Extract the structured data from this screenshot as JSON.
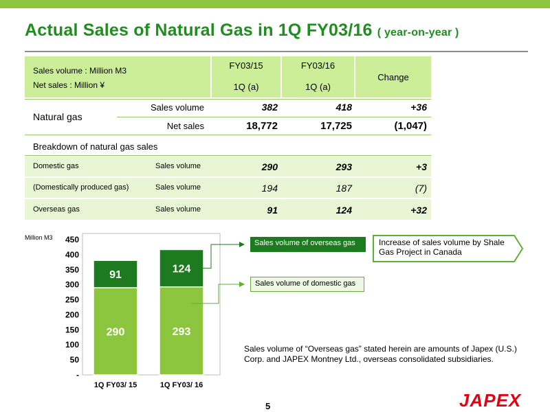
{
  "title": {
    "main": "Actual Sales of  Natural Gas  in 1Q FY03/16",
    "sub": "( year-on-year )"
  },
  "table": {
    "header": {
      "units_line1": "Sales volume : Million M3",
      "units_line2": "Net sales : Million ¥",
      "col1_line1": "FY03/15",
      "col1_line2": "1Q (a)",
      "col2_line1": "FY03/16",
      "col2_line2": "1Q (a)",
      "col3": "Change"
    },
    "natural_gas": {
      "label": "Natural gas",
      "rows": [
        {
          "label": "Sales volume",
          "fy15": "382",
          "fy16": "418",
          "change": "+36"
        },
        {
          "label": "Net sales",
          "fy15": "18,772",
          "fy16": "17,725",
          "change": "(1,047)"
        }
      ]
    },
    "breakdown_label": "Breakdown of natural gas sales",
    "breakdown": [
      {
        "name": "Domestic gas",
        "metric": "Sales volume",
        "fy15": "290",
        "fy16": "293",
        "change": "+3"
      },
      {
        "name": "(Domestically produced gas)",
        "metric": "Sales volume",
        "fy15": "194",
        "fy16": "187",
        "change": "(7)"
      },
      {
        "name": "Overseas gas",
        "metric": "Sales volume",
        "fy15": "91",
        "fy16": "124",
        "change": "+32"
      }
    ]
  },
  "chart_data": {
    "type": "bar",
    "stacked": true,
    "unit_label": "Million M3",
    "categories": [
      "1Q FY03/ 15",
      "1Q FY03/ 16"
    ],
    "series": [
      {
        "name": "Sales volume of domestic gas",
        "values": [
          290,
          293
        ],
        "color": "#8cc63f"
      },
      {
        "name": "Sales volume of overseas gas",
        "values": [
          91,
          124
        ],
        "color": "#1e7a1e"
      }
    ],
    "ylim": [
      0,
      450
    ],
    "yticks": [
      "-",
      "50",
      "100",
      "150",
      "200",
      "250",
      "300",
      "350",
      "400",
      "450"
    ],
    "data_labels": [
      [
        "290",
        "293"
      ],
      [
        "91",
        "124"
      ]
    ]
  },
  "callouts": {
    "overseas": "Sales volume of overseas gas",
    "domestic": "Sales volume of domestic gas",
    "arrow_text": "Increase of sales volume  by Shale Gas Project in Canada"
  },
  "note": "Sales volume of “Overseas gas” stated herein are amounts of Japex (U.S.) Corp. and JAPEX Montney Ltd., overseas consolidated subsidiaries.",
  "page_number": "5",
  "logo_text": "JAPEX",
  "colors": {
    "accent": "#8cc63f",
    "title": "#1e8f1e",
    "header_fill": "#ccee99",
    "row_fill": "#e9f6d6",
    "dark_bar": "#1e7a1e",
    "logo": "#e60012"
  }
}
